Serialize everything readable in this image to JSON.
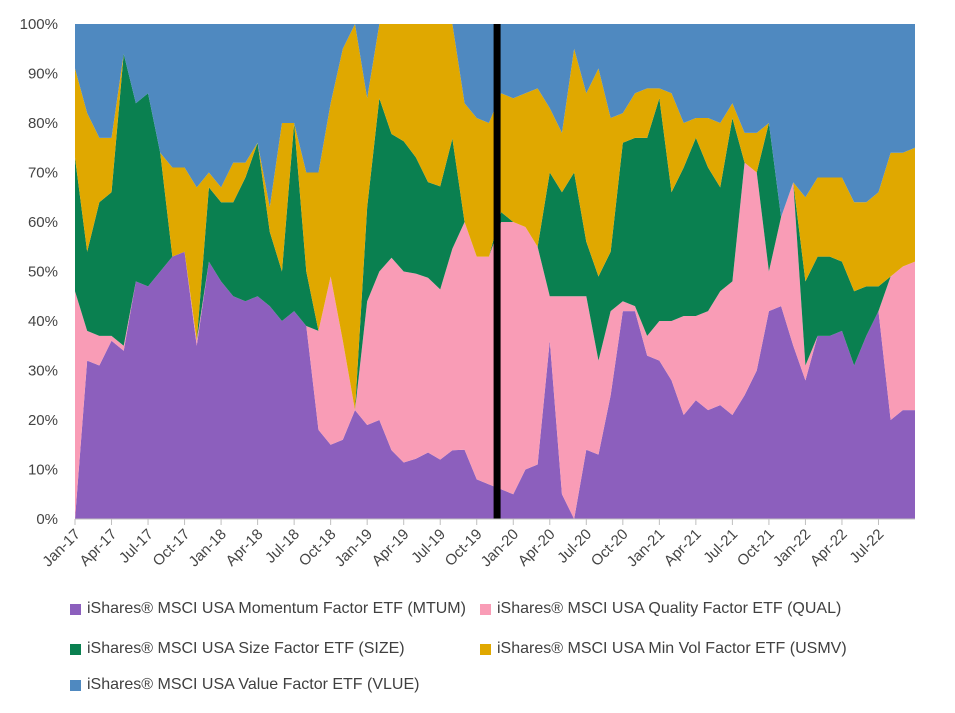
{
  "chart_data": {
    "type": "area",
    "stacked": "percent",
    "ylim": [
      0,
      100
    ],
    "y_ticks": [
      "0%",
      "10%",
      "20%",
      "30%",
      "40%",
      "50%",
      "60%",
      "70%",
      "80%",
      "90%",
      "100%"
    ],
    "x_tick_labels": [
      "Jan-17",
      "Apr-17",
      "Jul-17",
      "Oct-17",
      "Jan-18",
      "Apr-18",
      "Jul-18",
      "Oct-18",
      "Jan-19",
      "Apr-19",
      "Jul-19",
      "Oct-19",
      "Jan-20",
      "Apr-20",
      "Jul-20",
      "Oct-20",
      "Jan-21",
      "Apr-21",
      "Jul-21",
      "Oct-21",
      "Jan-22",
      "Apr-22",
      "Jul-22"
    ],
    "x_months": [
      "2017-01",
      "2017-02",
      "2017-03",
      "2017-04",
      "2017-05",
      "2017-06",
      "2017-07",
      "2017-08",
      "2017-09",
      "2017-10",
      "2017-11",
      "2017-12",
      "2018-01",
      "2018-02",
      "2018-03",
      "2018-04",
      "2018-05",
      "2018-06",
      "2018-07",
      "2018-08",
      "2018-09",
      "2018-10",
      "2018-11",
      "2018-12",
      "2019-01",
      "2019-02",
      "2019-03",
      "2019-04",
      "2019-05",
      "2019-06",
      "2019-07",
      "2019-08",
      "2019-09",
      "2019-10",
      "2019-11",
      "2019-12",
      "2020-01",
      "2020-02",
      "2020-03",
      "2020-04",
      "2020-05",
      "2020-06",
      "2020-07",
      "2020-08",
      "2020-09",
      "2020-10",
      "2020-11",
      "2020-12",
      "2021-01",
      "2021-02",
      "2021-03",
      "2021-04",
      "2021-05",
      "2021-06",
      "2021-07",
      "2021-08",
      "2021-09",
      "2021-10",
      "2021-11",
      "2021-12",
      "2022-01",
      "2022-02",
      "2022-03",
      "2022-04",
      "2022-05",
      "2022-06",
      "2022-07",
      "2022-08",
      "2022-09",
      "2022-10"
    ],
    "divider_month": "2019-12",
    "series": [
      {
        "name": "iShares® MSCI USA Momentum Factor ETF (MTUM)",
        "color": "#8c5fbd",
        "values": [
          0,
          32,
          31,
          36,
          34,
          48,
          47,
          50,
          53,
          54,
          35,
          52,
          48,
          45,
          44,
          45,
          43,
          40,
          42,
          39,
          18,
          15,
          16,
          22,
          19,
          20,
          15,
          13,
          14,
          16,
          15,
          15,
          14,
          8,
          7,
          6,
          5,
          10,
          11,
          36,
          5,
          0,
          14,
          13,
          25,
          42,
          42,
          33,
          32,
          28,
          21,
          24,
          22,
          23,
          21,
          25,
          30,
          42,
          43,
          35,
          28,
          37,
          37,
          38,
          31,
          37,
          42,
          20,
          22,
          22
        ]
      },
      {
        "name": "iShares® MSCI USA Quality Factor ETF (QUAL)",
        "color": "#f99cb6",
        "values": [
          46,
          6,
          6,
          1,
          1,
          0,
          0,
          0,
          0,
          0,
          1,
          0,
          0,
          0,
          0,
          0,
          0,
          0,
          0,
          0,
          20,
          34,
          20,
          0,
          25,
          30,
          42,
          44,
          43,
          42,
          43,
          44,
          46,
          45,
          46,
          54,
          55,
          49,
          44,
          9,
          40,
          45,
          31,
          19,
          17,
          2,
          1,
          4,
          8,
          12,
          20,
          17,
          20,
          23,
          27,
          47,
          40,
          8,
          18,
          33,
          3,
          0,
          0,
          0,
          0,
          0,
          0,
          29,
          29,
          30
        ]
      },
      {
        "name": "iShares® MSCI USA Size Factor ETF (SIZE)",
        "color": "#0a8050",
        "values": [
          27,
          16,
          27,
          29,
          59,
          36,
          39,
          24,
          0,
          0,
          0,
          15,
          16,
          19,
          25,
          31,
          15,
          10,
          38,
          11,
          0,
          0,
          0,
          0,
          19,
          35,
          27,
          30,
          27,
          23,
          26,
          24,
          0,
          0,
          0,
          2,
          0,
          0,
          0,
          25,
          21,
          25,
          11,
          17,
          12,
          32,
          34,
          40,
          45,
          26,
          30,
          36,
          29,
          21,
          33,
          0,
          0,
          30,
          0,
          0,
          17,
          16,
          16,
          14,
          15,
          10,
          5,
          0,
          0,
          0
        ]
      },
      {
        "name": "iShares® MSCI USA Min Vol Factor ETF (USMV)",
        "color": "#e0a800",
        "values": [
          18,
          28,
          13,
          11,
          0,
          0,
          0,
          0,
          18,
          17,
          31,
          3,
          3,
          8,
          3,
          0,
          5,
          30,
          0,
          20,
          32,
          35,
          59,
          78,
          22,
          15,
          24,
          27,
          31,
          38,
          41,
          25,
          24,
          28,
          27,
          24,
          25,
          27,
          32,
          13,
          12,
          25,
          30,
          42,
          27,
          6,
          9,
          10,
          2,
          20,
          9,
          4,
          10,
          13,
          3,
          6,
          8,
          0,
          0,
          0,
          17,
          16,
          16,
          17,
          18,
          17,
          19,
          25,
          23,
          23
        ]
      },
      {
        "name": "iShares® MSCI USA Value Factor ETF (VLUE)",
        "color": "#4f89c0",
        "values": [
          9,
          18,
          23,
          23,
          6,
          16,
          14,
          26,
          29,
          29,
          33,
          30,
          33,
          28,
          28,
          24,
          37,
          20,
          20,
          30,
          30,
          16,
          5,
          0,
          15,
          0,
          0,
          0,
          0,
          0,
          0,
          0,
          16,
          19,
          20,
          14,
          15,
          14,
          13,
          17,
          22,
          5,
          14,
          9,
          19,
          18,
          14,
          13,
          13,
          14,
          20,
          19,
          19,
          20,
          16,
          22,
          22,
          20,
          39,
          32,
          35,
          31,
          31,
          31,
          36,
          36,
          34,
          26,
          26,
          25
        ]
      }
    ]
  }
}
